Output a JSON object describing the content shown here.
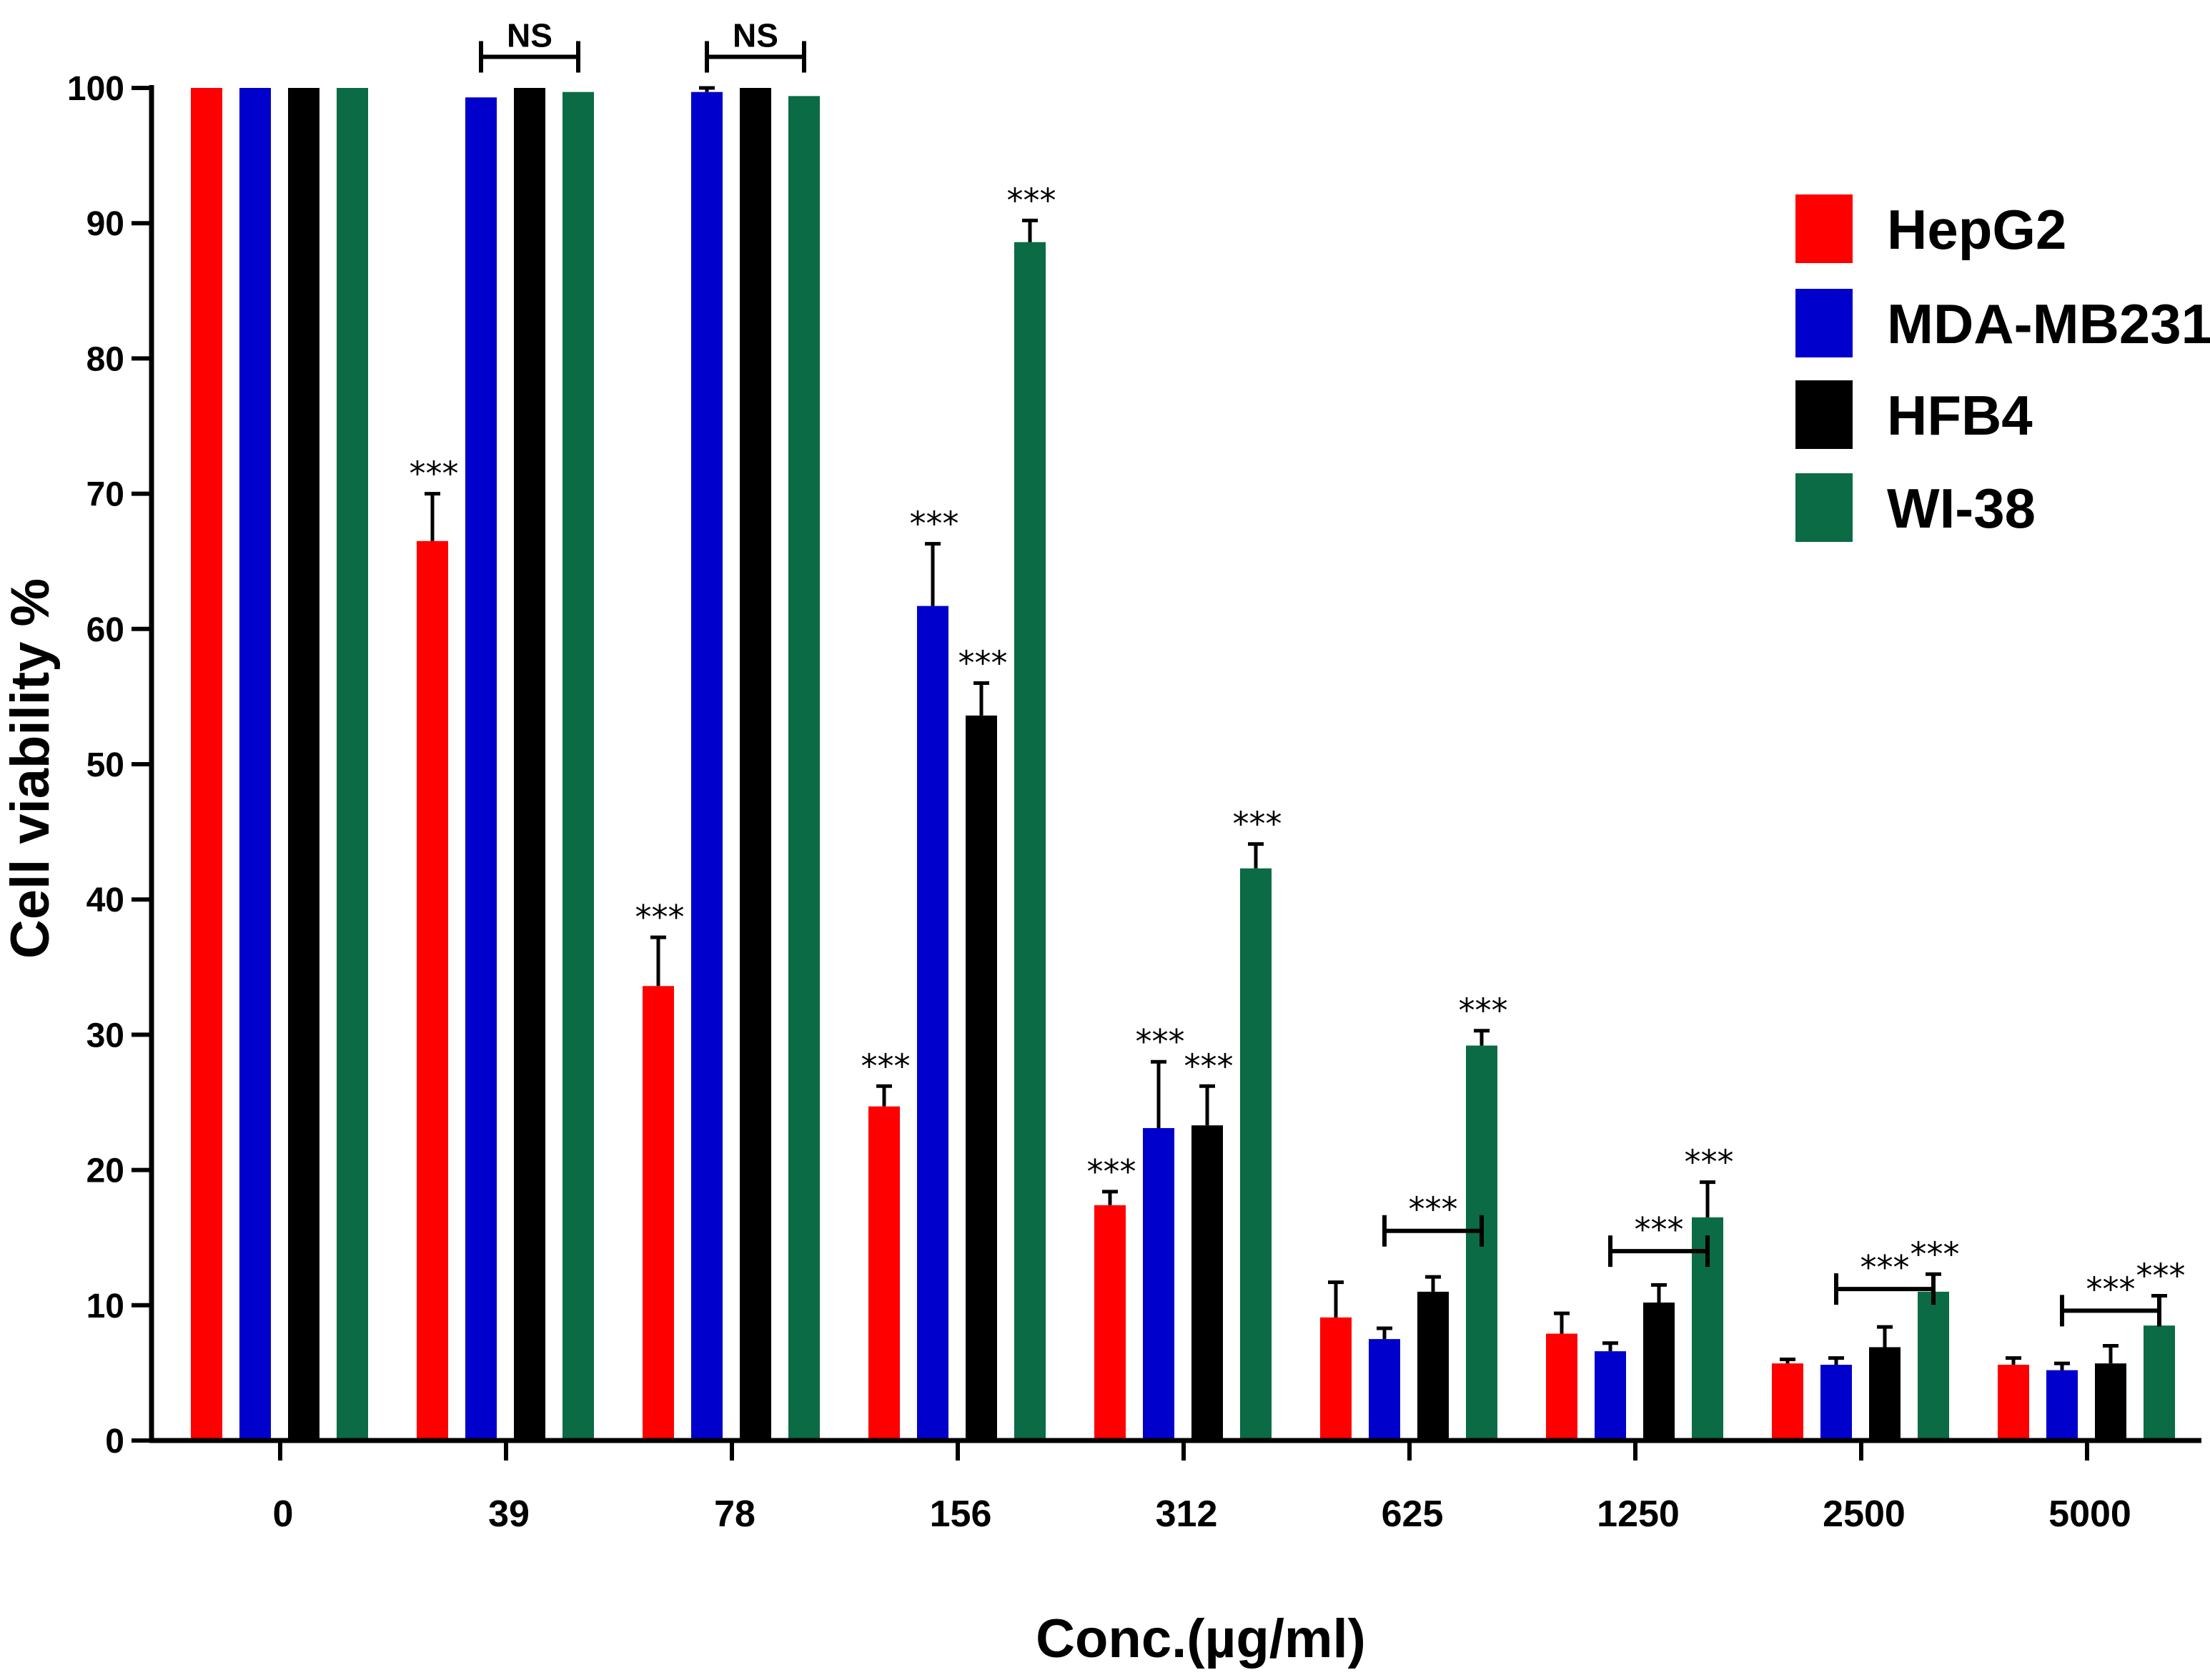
{
  "chart_data": {
    "type": "bar",
    "ylabel": "Cell viability %",
    "xlabel": "Conc.(µg/ml)",
    "ylim": [
      0,
      100
    ],
    "yticks": [
      0,
      10,
      20,
      30,
      40,
      50,
      60,
      70,
      80,
      90,
      100
    ],
    "categories": [
      "0",
      "39",
      "78",
      "156",
      "312",
      "625",
      "1250",
      "2500",
      "5000"
    ],
    "legend_position": "top-right",
    "series": [
      {
        "name": "HepG2",
        "color": "#ff0000",
        "values": [
          100,
          66.5,
          33.6,
          24.7,
          17.4,
          9.1,
          7.9,
          5.7,
          5.6
        ],
        "errors": [
          0,
          3.5,
          3.6,
          1.5,
          1.0,
          2.6,
          1.5,
          0.3,
          0.5
        ],
        "marks": [
          "",
          "***",
          "***",
          "***",
          "***",
          "",
          "",
          "",
          ""
        ]
      },
      {
        "name": "MDA-MB231",
        "color": "#0000cc",
        "values": [
          100,
          99.3,
          99.7,
          61.7,
          23.1,
          7.5,
          6.6,
          5.6,
          5.2
        ],
        "errors": [
          0,
          0,
          0.3,
          4.6,
          4.9,
          0.8,
          0.6,
          0.5,
          0.5
        ],
        "marks": [
          "",
          "",
          "",
          "***",
          "***",
          "",
          "",
          "",
          ""
        ]
      },
      {
        "name": "HFB4",
        "color": "#000000",
        "values": [
          100,
          100,
          100,
          53.6,
          23.3,
          11.0,
          10.2,
          6.9,
          5.7
        ],
        "errors": [
          0,
          0,
          0,
          2.4,
          2.9,
          1.1,
          1.3,
          1.5,
          1.3
        ],
        "marks": [
          "",
          "",
          "",
          "***",
          "***",
          "",
          "",
          "",
          ""
        ]
      },
      {
        "name": "WI-38",
        "color": "#0a6b45",
        "values": [
          100,
          99.7,
          99.4,
          88.6,
          42.3,
          29.2,
          16.5,
          11.0,
          8.5
        ],
        "errors": [
          0,
          0,
          0,
          1.6,
          1.8,
          1.1,
          2.6,
          1.3,
          2.2
        ],
        "marks": [
          "",
          "",
          "",
          "***",
          "***",
          "***",
          "***",
          "***",
          "***"
        ]
      }
    ],
    "brackets": [
      {
        "category_index": 1,
        "label": "NS",
        "y": 102.3
      },
      {
        "category_index": 2,
        "label": "NS",
        "y": 102.3
      },
      {
        "category_index": 5,
        "label": "***",
        "y": 15.5
      },
      {
        "category_index": 6,
        "label": "***",
        "y": 14.0
      },
      {
        "category_index": 7,
        "label": "***",
        "y": 11.2
      },
      {
        "category_index": 8,
        "label": "***",
        "y": 9.6
      }
    ]
  }
}
